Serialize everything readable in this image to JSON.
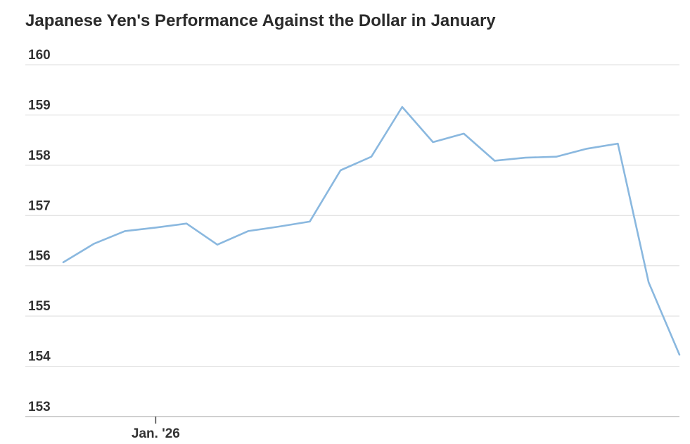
{
  "title": "Japanese Yen's Performance Against the Dollar in January",
  "colors": {
    "line": "#8ab8df",
    "grid": "#dcdcdc",
    "axis": "#b5b5b5",
    "text": "#333333"
  },
  "chart_data": {
    "type": "line",
    "title": "Japanese Yen's Performance Against the Dollar in January",
    "xlabel": "",
    "ylabel": "",
    "ylim": [
      153,
      160
    ],
    "y_ticks": [
      160,
      159,
      158,
      157,
      156,
      155,
      154,
      153
    ],
    "y_tick_labels": [
      "160",
      "159",
      "158",
      "157",
      "156",
      "155",
      "154",
      "153"
    ],
    "x_tick_labels": [
      {
        "label": "Jan. '26",
        "index": 3
      }
    ],
    "grid": true,
    "series": [
      {
        "values": [
          156.07,
          156.44,
          156.69,
          156.76,
          156.84,
          156.42,
          156.69,
          156.78,
          156.88,
          157.9,
          158.17,
          159.16,
          158.46,
          158.63,
          158.09,
          158.15,
          158.17,
          158.33,
          158.43,
          155.67,
          154.23
        ]
      }
    ]
  }
}
